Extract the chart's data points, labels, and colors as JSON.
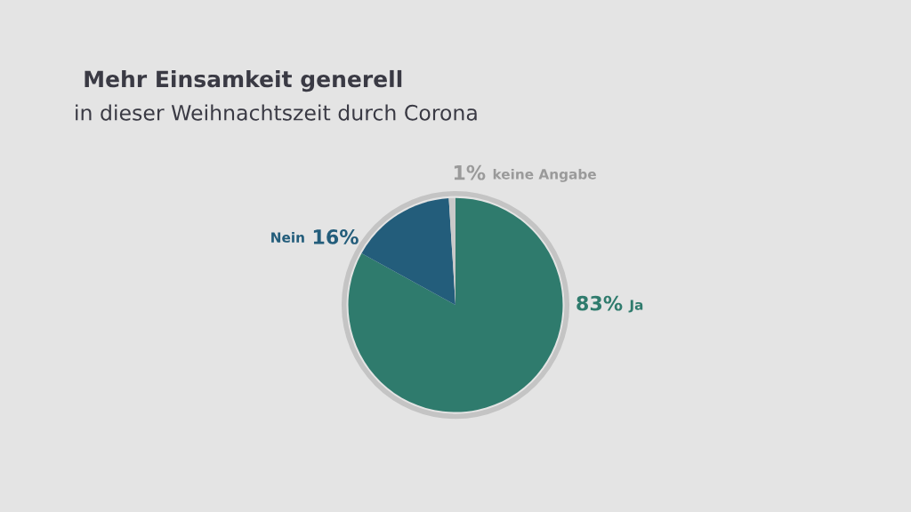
{
  "chart_data": {
    "type": "pie",
    "title": "Mehr Einsamkeit generell",
    "subtitle": "in dieser Weihnachtszeit durch Corona",
    "categories": [
      "Ja",
      "Nein",
      "keine Angabe"
    ],
    "values": [
      83,
      16,
      1
    ],
    "value_labels": [
      "83%",
      "16%",
      "1%"
    ],
    "colors": [
      "#2f7b6d",
      "#235d7b",
      "#c9c9c9"
    ]
  }
}
